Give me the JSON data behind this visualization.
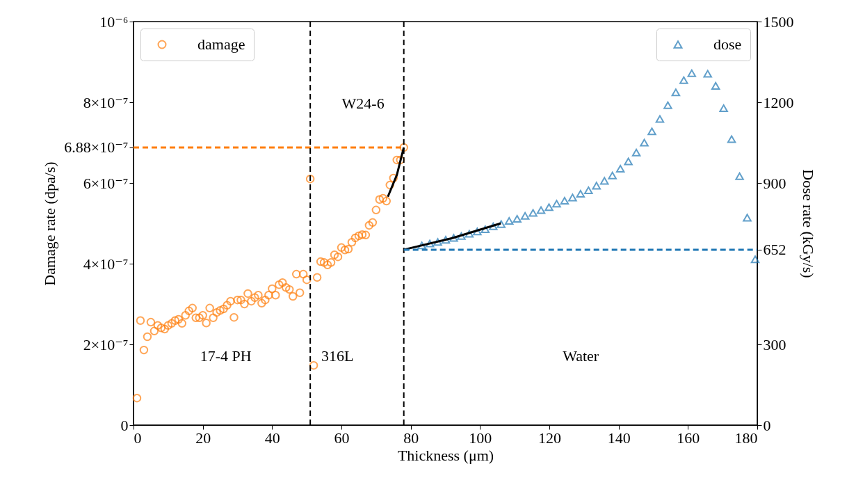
{
  "chart_data": {
    "type": "scatter",
    "xlabel": "Thickness (μm)",
    "ylabel": "Damage rate (dpa/s)",
    "y2label": "Dose rate (kGy/s)",
    "xlim": [
      0,
      180
    ],
    "xticks": [
      0,
      20,
      40,
      60,
      80,
      100,
      120,
      140,
      160,
      180
    ],
    "ylim": [
      0,
      1e-06
    ],
    "yticks": [
      0,
      {
        "value": 2e-07,
        "label": "2×10⁻⁷"
      },
      {
        "value": 4e-07,
        "label": "4×10⁻⁷"
      },
      {
        "value": 6e-07,
        "label": "6×10⁻⁷"
      },
      {
        "value": 6.88e-07,
        "label": "6.88×10⁻⁷"
      },
      {
        "value": 8e-07,
        "label": "8×10⁻⁷"
      },
      {
        "value": 1e-06,
        "label": "10⁻⁶"
      }
    ],
    "y2lim": [
      0,
      1500
    ],
    "y2ticks": [
      0,
      300,
      652,
      900,
      1200,
      1500
    ],
    "grid": false,
    "legend": "top left",
    "series": [
      {
        "name": "damage",
        "color": "#ff7f0e",
        "marker": "circle",
        "x": [
          1,
          2,
          3,
          4,
          5,
          6,
          7,
          8,
          9,
          10,
          11,
          12,
          13,
          14,
          15,
          16,
          17,
          18,
          19,
          20,
          21,
          22,
          23,
          24,
          25,
          26,
          27,
          28,
          29,
          30,
          31,
          32,
          33,
          34,
          35,
          36,
          37,
          38,
          39,
          40,
          41,
          42,
          43,
          44,
          45,
          46,
          47,
          48,
          49,
          50,
          51,
          52,
          53,
          54,
          55,
          56,
          57,
          58,
          59,
          60,
          61,
          62,
          63,
          64,
          65,
          66,
          67,
          68,
          69,
          70,
          71,
          72,
          73,
          74,
          75,
          76,
          77,
          78
        ],
        "values": [
          6.7e-08,
          2.59e-07,
          1.86e-07,
          2.19e-07,
          2.55e-07,
          2.33e-07,
          2.47e-07,
          2.41e-07,
          2.38e-07,
          2.47e-07,
          2.52e-07,
          2.59e-07,
          2.62e-07,
          2.52e-07,
          2.72e-07,
          2.83e-07,
          2.9e-07,
          2.66e-07,
          2.66e-07,
          2.72e-07,
          2.53e-07,
          2.9e-07,
          2.66e-07,
          2.79e-07,
          2.84e-07,
          2.88e-07,
          2.97e-07,
          3.07e-07,
          2.67e-07,
          3.1e-07,
          3.1e-07,
          3e-07,
          3.26e-07,
          3.07e-07,
          3.16e-07,
          3.22e-07,
          3.02e-07,
          3.1e-07,
          3.22e-07,
          3.38e-07,
          3.22e-07,
          3.48e-07,
          3.53e-07,
          3.41e-07,
          3.36e-07,
          3.19e-07,
          3.74e-07,
          3.28e-07,
          3.74e-07,
          3.6e-07,
          6.1e-07,
          1.48e-07,
          3.66e-07,
          4.05e-07,
          4.03e-07,
          3.97e-07,
          4.03e-07,
          4.22e-07,
          4.17e-07,
          4.4e-07,
          4.34e-07,
          4.36e-07,
          4.53e-07,
          4.64e-07,
          4.69e-07,
          4.72e-07,
          4.71e-07,
          4.95e-07,
          5.02e-07,
          5.33e-07,
          5.59e-07,
          5.62e-07,
          5.55e-07,
          5.95e-07,
          6.12e-07,
          6.57e-07,
          6.57e-07,
          6.88e-07
        ]
      },
      {
        "type": "line",
        "color": "#000000",
        "line_style": "solid",
        "x": [
          73.4,
          76,
          78
        ],
        "values": [
          5.66e-07,
          6.2e-07,
          6.88e-07
        ]
      },
      {
        "type": "line",
        "color": "#ff7f0e",
        "line_style": "dashed",
        "x": [
          0,
          78
        ],
        "values": [
          6.88e-07,
          6.88e-07
        ]
      },
      {
        "name": "dose",
        "color": "#1f77b4",
        "marker": "triangle",
        "axis": "y2",
        "x": [
          83.2,
          85.5,
          87.8,
          90.1,
          92.4,
          94.6,
          96.9,
          99.2,
          101.5,
          103.8,
          106.1,
          108.4,
          110.7,
          113.0,
          115.3,
          117.6,
          119.9,
          122.1,
          124.4,
          126.7,
          129.0,
          131.3,
          133.6,
          135.9,
          138.2,
          140.5,
          142.8,
          145.1,
          147.4,
          149.6,
          151.9,
          154.2,
          156.5,
          158.8,
          161.1,
          163.4,
          165.7,
          168.0,
          170.3,
          172.6,
          174.9,
          177.1,
          179.4
        ],
        "values": [
          668,
          675,
          681,
          689,
          696,
          703,
          711,
          720,
          728,
          739,
          747,
          759,
          767,
          778,
          789,
          799,
          810,
          823,
          834,
          846,
          860,
          873,
          890,
          908,
          928,
          953,
          980,
          1013,
          1050,
          1092,
          1138,
          1189,
          1237,
          1282,
          1308,
          null,
          1306,
          1261,
          1178,
          1063,
          925,
          771,
          616
        ]
      },
      {
        "type": "line",
        "color": "#000000",
        "line_style": "solid",
        "axis": "y2",
        "x": [
          78,
          92,
          106
        ],
        "values": [
          652,
          695,
          750
        ]
      },
      {
        "type": "line",
        "color": "#1f77b4",
        "line_style": "dashed",
        "axis": "y2",
        "x": [
          78,
          180
        ],
        "values": [
          652,
          652
        ]
      }
    ],
    "ref_lines": [
      {
        "axis": "x",
        "value": 51,
        "color": "#000000",
        "line_style": "dashed"
      },
      {
        "axis": "x",
        "value": 78,
        "color": "#000000",
        "line_style": "dashed"
      }
    ],
    "annotations": [
      "17-4 PH",
      "316L",
      "Water",
      "W24-6"
    ]
  }
}
